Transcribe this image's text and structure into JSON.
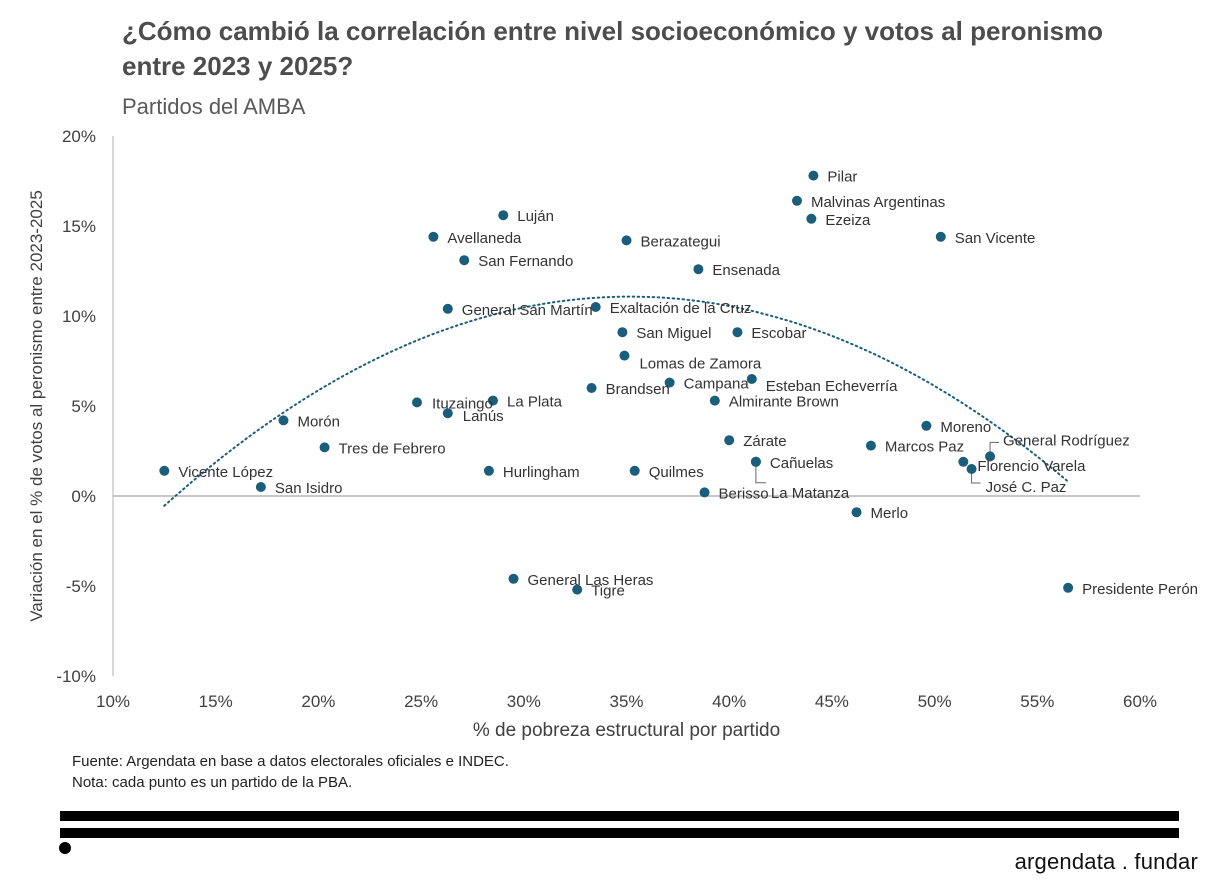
{
  "header": {
    "title": "¿Cómo cambió la correlación entre nivel socioeconómico y votos al peronismo entre 2023 y 2025?",
    "subtitle": "Partidos del AMBA"
  },
  "footer": {
    "source": "Fuente: Argendata en base a datos electorales oficiales e INDEC.",
    "note": "Nota: cada punto es un partido de la PBA.",
    "brand": "argendata . fundar"
  },
  "colors": {
    "point": "#1b5e7b",
    "trend": "#1b5e7b",
    "axis": "#bfbfbf",
    "zero_line": "#a6a6a6",
    "text": "#404040"
  },
  "chart_data": {
    "type": "scatter",
    "title": "¿Cómo cambió la correlación entre nivel socioeconómico y votos al peronismo entre 2023 y 2025?",
    "subtitle": "Partidos del AMBA",
    "xlabel": "% de pobreza estructural por partido",
    "ylabel": "Variación en el % de votos al peronismo entre 2023-2025",
    "xlim": [
      10,
      60
    ],
    "ylim": [
      -10,
      20
    ],
    "x_ticks": [
      "10%",
      "15%",
      "20%",
      "25%",
      "30%",
      "35%",
      "40%",
      "45%",
      "50%",
      "55%",
      "60%"
    ],
    "y_ticks": [
      "20%",
      "15%",
      "10%",
      "5%",
      "0%",
      "-5%",
      "-10%"
    ],
    "grid": false,
    "trendline": {
      "type": "polynomial",
      "degree": 2,
      "style": "dotted",
      "x_range": [
        12.5,
        56.5
      ],
      "coefficients": [
        -16.89,
        1.59,
        -0.0226
      ]
    },
    "points": [
      {
        "name": "Pilar",
        "x": 44.1,
        "y": 17.8
      },
      {
        "name": "Malvinas Argentinas",
        "x": 43.3,
        "y": 16.4
      },
      {
        "name": "Luján",
        "x": 29.0,
        "y": 15.6
      },
      {
        "name": "Ezeiza",
        "x": 44.0,
        "y": 15.4
      },
      {
        "name": "Avellaneda",
        "x": 25.6,
        "y": 14.4
      },
      {
        "name": "San Vicente",
        "x": 50.3,
        "y": 14.4
      },
      {
        "name": "Berazategui",
        "x": 35.0,
        "y": 14.2
      },
      {
        "name": "San Fernando",
        "x": 27.1,
        "y": 13.1
      },
      {
        "name": "Ensenada",
        "x": 38.5,
        "y": 12.6
      },
      {
        "name": "General San Martín",
        "x": 26.3,
        "y": 10.4
      },
      {
        "name": "Exaltación de la Cruz",
        "x": 33.5,
        "y": 10.5
      },
      {
        "name": "San Miguel",
        "x": 34.8,
        "y": 9.1
      },
      {
        "name": "Escobar",
        "x": 40.4,
        "y": 9.1
      },
      {
        "name": "Lomas de Zamora",
        "x": 34.9,
        "y": 7.8
      },
      {
        "name": "Esteban Echeverría",
        "x": 41.1,
        "y": 6.5
      },
      {
        "name": "Campana",
        "x": 37.1,
        "y": 6.3
      },
      {
        "name": "Brandsen",
        "x": 33.3,
        "y": 6.0
      },
      {
        "name": "Almirante Brown",
        "x": 39.3,
        "y": 5.3
      },
      {
        "name": "Ituzaingó",
        "x": 24.8,
        "y": 5.2
      },
      {
        "name": "La Plata",
        "x": 28.5,
        "y": 5.3
      },
      {
        "name": "Lanús",
        "x": 26.3,
        "y": 4.6
      },
      {
        "name": "Morón",
        "x": 18.3,
        "y": 4.2
      },
      {
        "name": "Moreno",
        "x": 49.6,
        "y": 3.9
      },
      {
        "name": "Zárate",
        "x": 40.0,
        "y": 3.1
      },
      {
        "name": "Marcos Paz",
        "x": 46.9,
        "y": 2.8
      },
      {
        "name": "Tres de Febrero",
        "x": 20.3,
        "y": 2.7
      },
      {
        "name": "General Rodríguez",
        "x": 52.7,
        "y": 2.2
      },
      {
        "name": "Cañuelas",
        "x": 41.3,
        "y": 1.9
      },
      {
        "name": "Florencio Varela",
        "x": 51.4,
        "y": 1.9
      },
      {
        "name": "José C. Paz",
        "x": 51.8,
        "y": 1.5
      },
      {
        "name": "Vicente López",
        "x": 12.5,
        "y": 1.4
      },
      {
        "name": "Hurlingham",
        "x": 28.3,
        "y": 1.4
      },
      {
        "name": "Quilmes",
        "x": 35.4,
        "y": 1.4
      },
      {
        "name": "La Matanza",
        "x": 41.3,
        "y": 1.9
      },
      {
        "name": "San Isidro",
        "x": 17.2,
        "y": 0.5
      },
      {
        "name": "Berisso",
        "x": 38.8,
        "y": 0.2
      },
      {
        "name": "Merlo",
        "x": 46.2,
        "y": -0.9
      },
      {
        "name": "General Las Heras",
        "x": 29.5,
        "y": -4.6
      },
      {
        "name": "Tigre",
        "x": 32.6,
        "y": -5.2
      },
      {
        "name": "Presidente Perón",
        "x": 56.5,
        "y": -5.1
      }
    ]
  }
}
